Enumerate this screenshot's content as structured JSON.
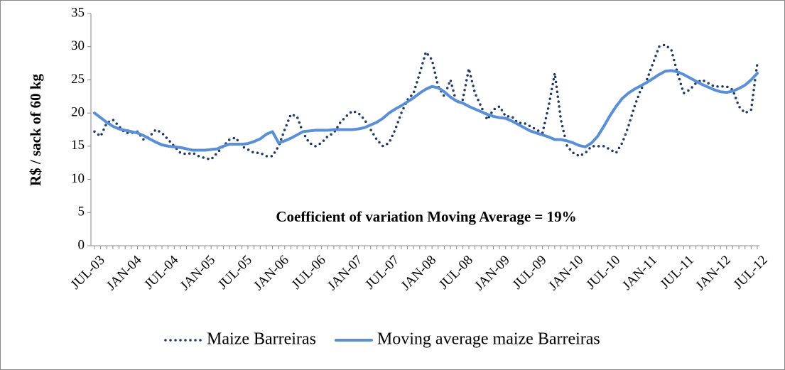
{
  "chart_data": {
    "type": "line",
    "y_axis_label": "R$ / sack of 60 kg",
    "annotation": "Coefficient of variation Moving Average = 19%",
    "categories": [
      "JUL-03",
      null,
      null,
      null,
      null,
      null,
      "JAN-04",
      null,
      null,
      null,
      null,
      null,
      "JUL-04",
      null,
      null,
      null,
      null,
      null,
      "JAN-05",
      null,
      null,
      null,
      null,
      null,
      "JUL-05",
      null,
      null,
      null,
      null,
      null,
      "JAN-06",
      null,
      null,
      null,
      null,
      null,
      "JUL-06",
      null,
      null,
      null,
      null,
      null,
      "JAN-07",
      null,
      null,
      null,
      null,
      null,
      "JUL-07",
      null,
      null,
      null,
      null,
      null,
      "JAN-08",
      null,
      null,
      null,
      null,
      null,
      "JUL-08",
      null,
      null,
      null,
      null,
      null,
      "JAN-09",
      null,
      null,
      null,
      null,
      null,
      "JUL-09",
      null,
      null,
      null,
      null,
      null,
      "JAN-10",
      null,
      null,
      null,
      null,
      null,
      "JUL-10",
      null,
      null,
      null,
      null,
      null,
      "JAN-11",
      null,
      null,
      null,
      null,
      null,
      "JUL-11",
      null,
      null,
      null,
      null,
      null,
      "JAN-12",
      null,
      null,
      null,
      null,
      null,
      "JUL-12"
    ],
    "series": [
      {
        "name": "Maize Barreiras",
        "color": "#1f3864",
        "style": "dotted",
        "values": [
          17.2,
          16.5,
          18.5,
          19,
          18,
          17,
          17,
          17.2,
          16,
          16.5,
          17.5,
          17,
          16,
          15,
          14,
          13.8,
          14,
          13.5,
          13.2,
          13,
          14,
          15,
          16,
          16.3,
          15,
          14.5,
          14,
          14,
          13.5,
          13.5,
          15,
          17.5,
          19.8,
          19.5,
          17,
          15.5,
          15,
          15.5,
          16.5,
          17,
          18.5,
          19.5,
          20.3,
          20,
          19,
          17.5,
          16,
          15,
          15.5,
          17.5,
          20,
          22,
          23,
          26,
          29.2,
          28,
          24,
          22.5,
          25,
          21.5,
          22,
          26.7,
          23,
          21,
          19,
          20.5,
          21,
          19.5,
          19.5,
          18.5,
          18.5,
          18,
          17.5,
          17,
          21,
          26,
          19,
          15,
          14,
          13.5,
          14,
          15,
          15,
          15,
          14.5,
          14,
          15.5,
          18,
          21,
          23.5,
          25,
          27.5,
          30,
          30.3,
          29.5,
          26,
          23,
          23.5,
          24.5,
          25,
          24.5,
          24,
          24,
          24,
          23.5,
          21,
          20,
          20.5,
          27.5
        ]
      },
      {
        "name": "Moving average maize Barreiras",
        "color": "#5b8fd5",
        "style": "solid",
        "values": [
          20,
          19.3,
          18.6,
          18,
          17.6,
          17.4,
          17.2,
          17,
          16.6,
          16.1,
          15.6,
          15.2,
          15,
          14.9,
          14.8,
          14.6,
          14.4,
          14.4,
          14.4,
          14.5,
          14.6,
          15,
          15.3,
          15.3,
          15.3,
          15.4,
          15.7,
          16.1,
          16.8,
          17.2,
          15.5,
          15.8,
          16.2,
          16.7,
          17.2,
          17.3,
          17.4,
          17.4,
          17.4,
          17.5,
          17.5,
          17.5,
          17.5,
          17.6,
          17.8,
          18.2,
          18.6,
          19.2,
          20,
          20.6,
          21.1,
          21.7,
          22.3,
          23,
          23.6,
          24,
          23.8,
          23.2,
          22.4,
          21.8,
          21.5,
          21,
          20.6,
          20.2,
          19.8,
          19.5,
          19.3,
          19.2,
          18.8,
          18.3,
          17.8,
          17.3,
          17,
          16.7,
          16.4,
          16,
          16,
          15.8,
          15.5,
          15.1,
          14.9,
          15.5,
          16.5,
          18,
          19.6,
          21,
          22.2,
          23,
          23.6,
          24.1,
          24.6,
          25.2,
          25.8,
          26.3,
          26.4,
          26.2,
          25.8,
          25.3,
          24.8,
          24.3,
          23.9,
          23.5,
          23.2,
          23.1,
          23.3,
          23.7,
          24.2,
          25,
          26
        ]
      }
    ],
    "ylim": [
      0,
      35
    ],
    "yticks": [
      0,
      5,
      10,
      15,
      20,
      25,
      30,
      35
    ],
    "legend": "bottom"
  }
}
